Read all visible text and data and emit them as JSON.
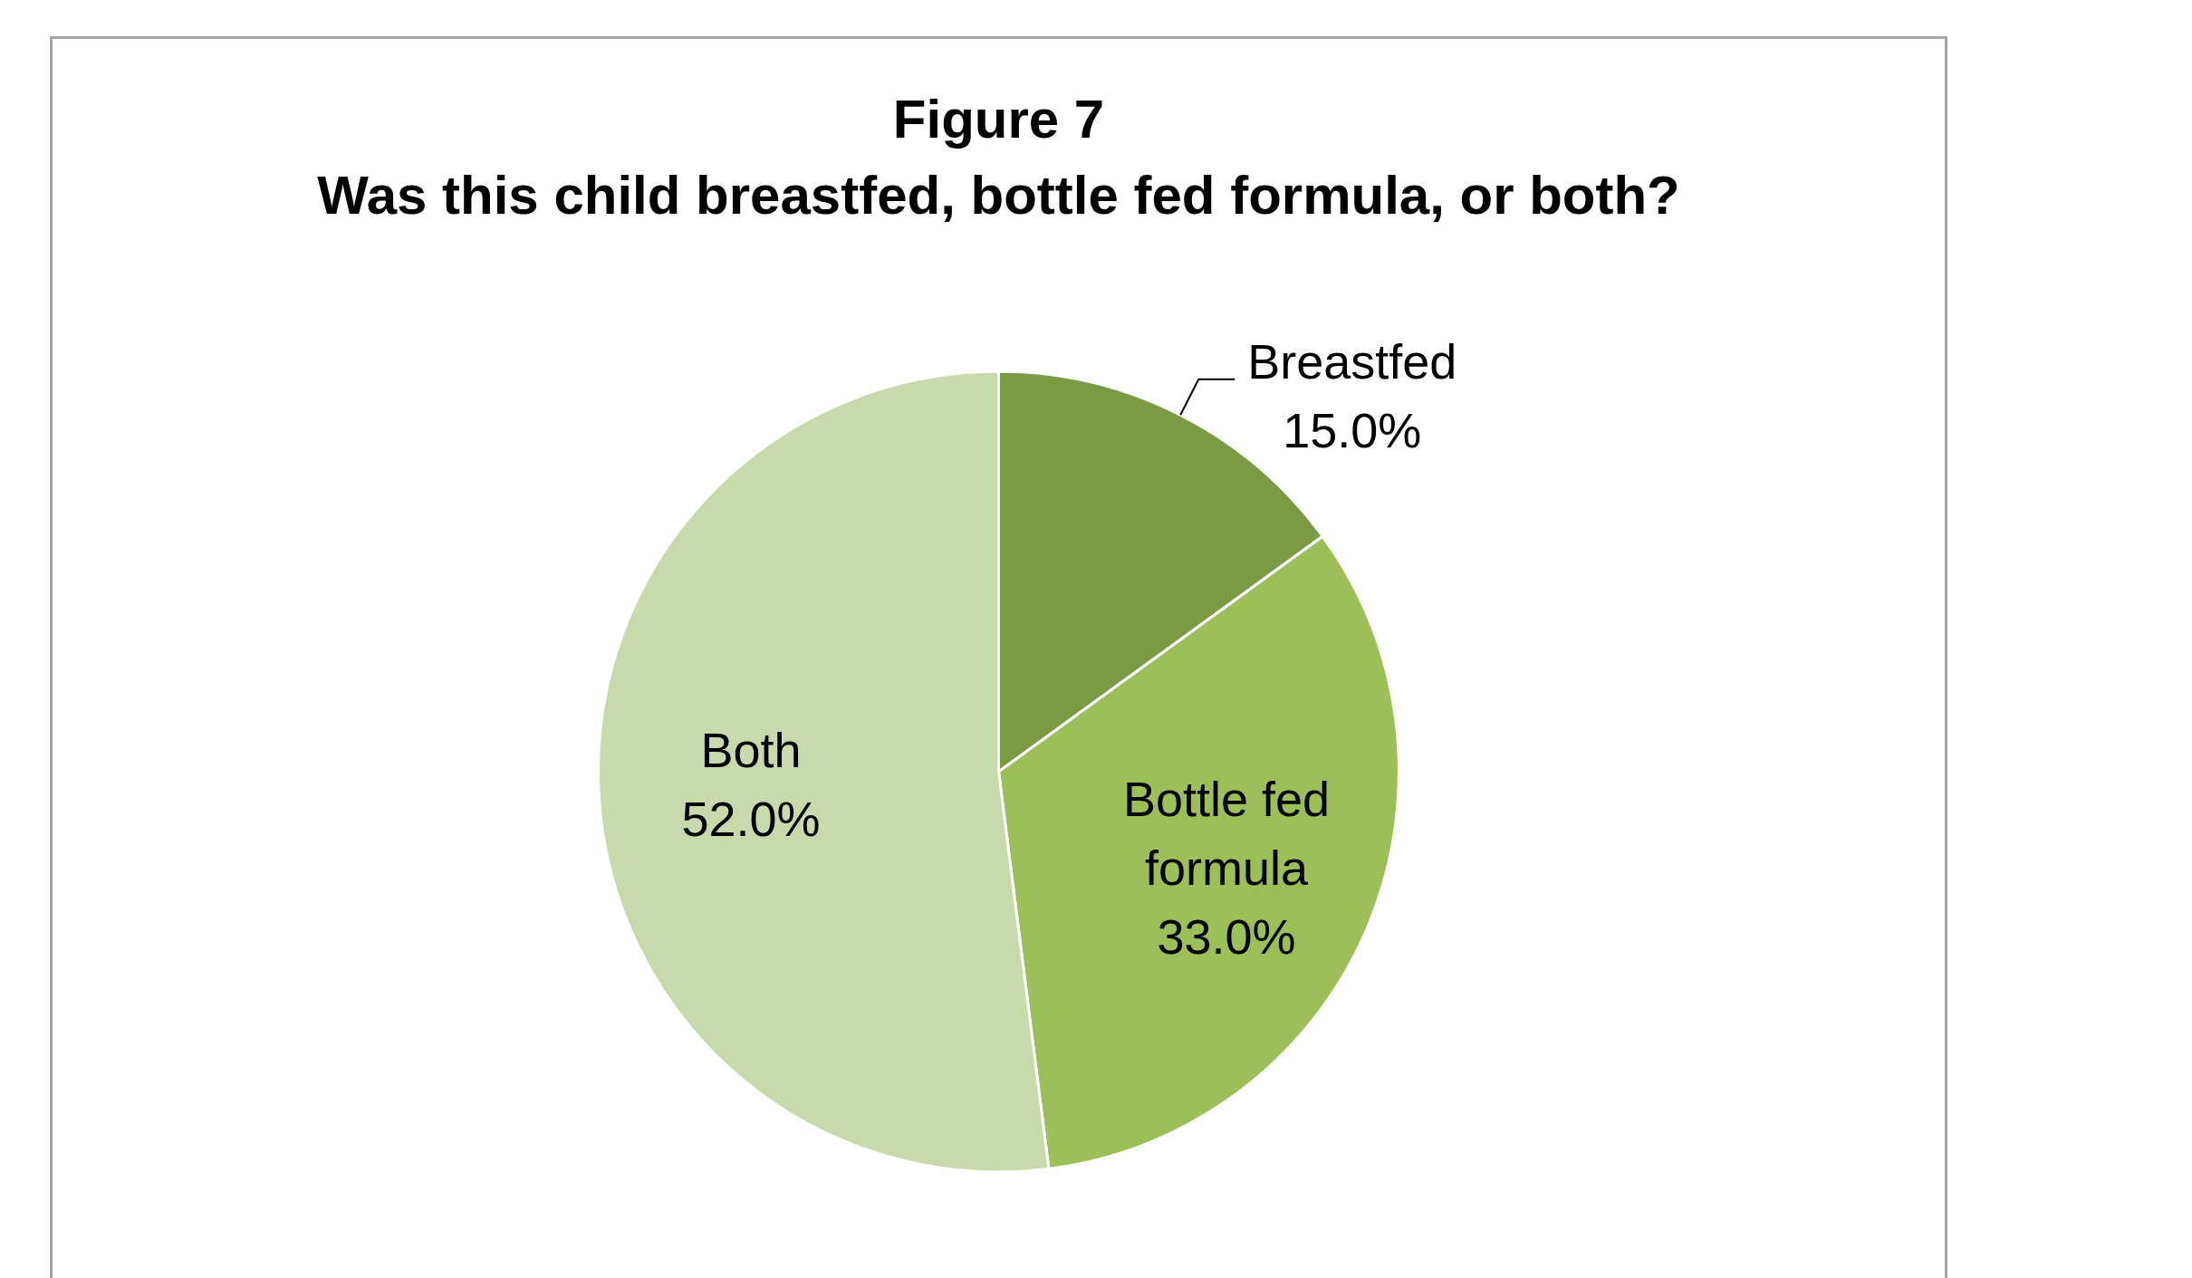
{
  "chart_data": {
    "type": "pie",
    "title": "Figure 7",
    "subtitle": "Was this child breastfed, bottle fed formula, or both?",
    "categories": [
      "Breastfed",
      "Bottle fed formula",
      "Both"
    ],
    "values": [
      15,
      33,
      52
    ],
    "colors": [
      "#7a9a44",
      "#9dbf58",
      "#c8daab"
    ],
    "value_labels": [
      "15.0%",
      "33.0%",
      "52.0%"
    ]
  }
}
